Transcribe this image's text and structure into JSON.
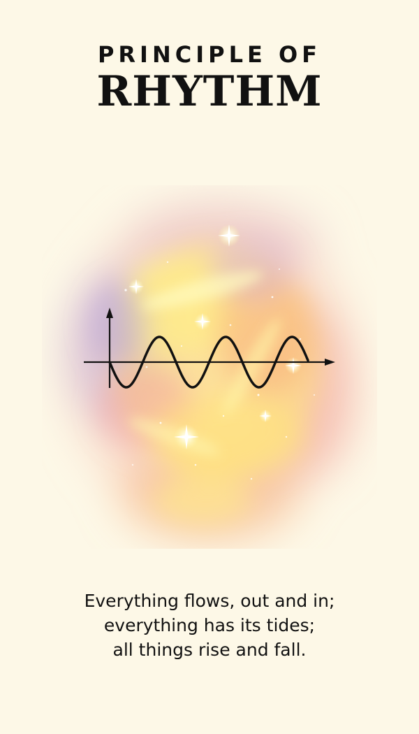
{
  "header": {
    "eyebrow": "PRINCIPLE OF",
    "title": "RHYTHM"
  },
  "illustration": {
    "icon": "sine-wave-icon",
    "background": "watercolor-nebula",
    "colors": {
      "wave": "#111111",
      "glow_yellow": "#FFF27A",
      "glow_orange": "#F7B27A",
      "glow_pink": "#F4A6A6",
      "glow_purple": "#C9A8D6",
      "page": "#FDF8E7"
    }
  },
  "quote": {
    "lines": [
      "Everything flows, out and in;",
      "everything has its tides;",
      "all things rise and fall."
    ]
  }
}
